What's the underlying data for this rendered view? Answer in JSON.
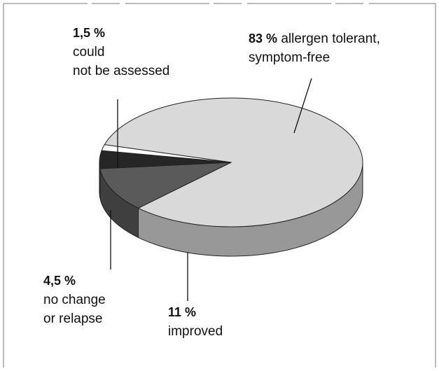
{
  "chart_data": {
    "type": "pie3d",
    "categories": [
      "allergen tolerant,\nsymptom-free",
      "improved",
      "no change\nor relapse",
      "could\nnot be assessed"
    ],
    "values": [
      83,
      11,
      4.5,
      1.5
    ],
    "value_labels": [
      "83 %",
      "11 %",
      "4,5 %",
      "1,5 %"
    ],
    "colors": [
      "#d9d9d9",
      "#5a5a5a",
      "#262626",
      "#ffffff"
    ]
  }
}
